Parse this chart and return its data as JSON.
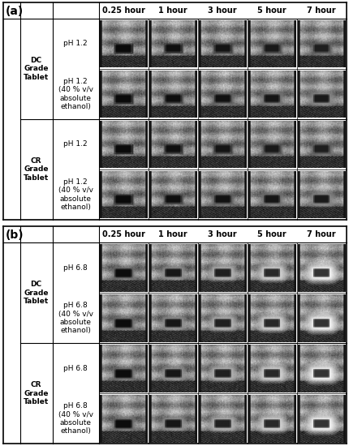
{
  "fig_width": 4.31,
  "fig_height": 5.5,
  "dpi": 100,
  "panel_a": {
    "label": "(a)",
    "bg_color": "#FF3333",
    "row_group_labels": [
      "DC\nGrade\nTablet",
      "CR\nGrade\nTablet"
    ],
    "row_labels": [
      "pH 1.2",
      "pH 1.2\n(40 % v/v\nabsolute\nethanol)",
      "pH 1.2",
      "pH 1.2\n(40 % v/v\nabsolute\nethanol)"
    ],
    "col_labels": [
      "0.25 hour",
      "1 hour",
      "3 hour",
      "5 hour",
      "7 hour"
    ]
  },
  "panel_b": {
    "label": "(b)",
    "bg_color": "#33CCFF",
    "row_group_labels": [
      "DC\nGrade\nTablet",
      "CR\nGrade\nTablet"
    ],
    "row_labels": [
      "pH 6.8",
      "pH 6.8\n(40 % v/v\nabsolute\nethanol)",
      "pH 6.8",
      "pH 6.8\n(40 % v/v\nabsolute\nethanol)"
    ],
    "col_labels": [
      "0.25 hour",
      "1 hour",
      "3 hour",
      "5 hour",
      "7 hour"
    ]
  },
  "label_fontsize": 6.5,
  "col_label_fontsize": 7,
  "panel_label_fontsize": 10
}
